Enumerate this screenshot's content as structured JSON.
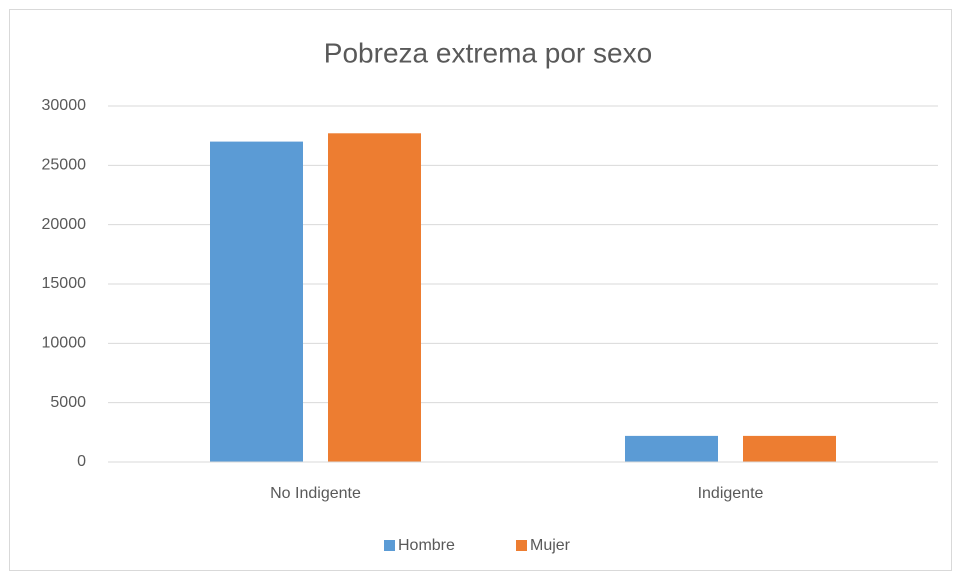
{
  "chart_data": {
    "type": "bar",
    "title": "Pobreza extrema por sexo",
    "categories": [
      "No Indigente",
      "Indigente"
    ],
    "series": [
      {
        "name": "Hombre",
        "color": "#5b9bd5",
        "values": [
          27000,
          2200
        ]
      },
      {
        "name": "Mujer",
        "color": "#ed7d31",
        "values": [
          27700,
          2200
        ]
      }
    ],
    "ylim": [
      0,
      30000
    ],
    "yticks": [
      0,
      5000,
      10000,
      15000,
      20000,
      25000,
      30000
    ],
    "grid": true,
    "legend": "bottom"
  }
}
